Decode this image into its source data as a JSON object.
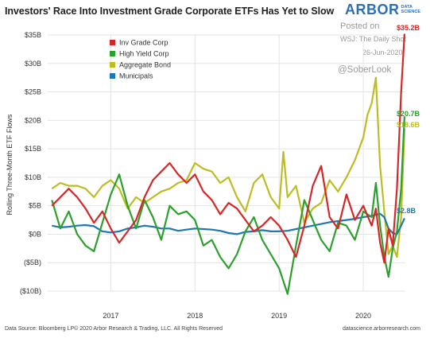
{
  "header": {
    "title": "Investors' Race Into Investment Grade Corporate ETFs Has Yet to Slow",
    "brand_name": "ARBOR",
    "brand_sub_1": "DATA",
    "brand_sub_2": "SCIENCE"
  },
  "watermark": {
    "posted_on": "Posted on",
    "source": "WSJ: The Daily Shot",
    "date": "26-Jun-2020",
    "handle": "@SoberLook"
  },
  "footer": {
    "source": "Data Source: Bloomberg LP© 2020 Arbor Research & Trading, LLC. All Rights Reserved",
    "site": "datascience.arborresearch.com"
  },
  "chart_data": {
    "type": "line",
    "title": "Investors' Race Into Investment Grade Corporate ETFs Has Yet to Slow",
    "ylabel": "Rolling Three-Month ETF Flows",
    "xlabel": "",
    "ylim": [
      -10,
      35
    ],
    "yticks": [
      35,
      30,
      25,
      20,
      15,
      10,
      5,
      0,
      -5,
      -10
    ],
    "ytick_labels": [
      "$35B",
      "$30B",
      "$25B",
      "$20B",
      "$15B",
      "$10B",
      "$5B",
      "$0B",
      "($5B)",
      "($10B)"
    ],
    "xlim": [
      2016.25,
      2020.5
    ],
    "xticks": [
      2017,
      2018,
      2019,
      2020
    ],
    "xtick_labels": [
      "2017",
      "2018",
      "2019",
      "2020"
    ],
    "grid": true,
    "legend_position": "top-left",
    "series": [
      {
        "name": "Inv Grade Corp",
        "color": "#d62728",
        "end_label": "$35.2B",
        "x": [
          2016.3,
          2016.4,
          2016.5,
          2016.6,
          2016.7,
          2016.8,
          2016.9,
          2017.0,
          2017.1,
          2017.2,
          2017.3,
          2017.4,
          2017.5,
          2017.6,
          2017.7,
          2017.8,
          2017.9,
          2018.0,
          2018.1,
          2018.2,
          2018.3,
          2018.4,
          2018.5,
          2018.6,
          2018.7,
          2018.8,
          2018.9,
          2019.0,
          2019.1,
          2019.2,
          2019.3,
          2019.4,
          2019.5,
          2019.6,
          2019.7,
          2019.8,
          2019.9,
          2020.0,
          2020.1,
          2020.15,
          2020.2,
          2020.25,
          2020.3,
          2020.35,
          2020.4,
          2020.45,
          2020.49
        ],
        "values": [
          5.0,
          6.5,
          8.0,
          6.5,
          4.5,
          2.0,
          4.0,
          1.0,
          -1.5,
          0.5,
          2.5,
          6.5,
          9.5,
          11.0,
          12.5,
          10.5,
          9.0,
          10.5,
          7.5,
          6.0,
          3.5,
          5.5,
          4.5,
          2.5,
          0.5,
          1.5,
          3.0,
          1.5,
          -1.0,
          -4.0,
          1.5,
          8.5,
          12.0,
          3.0,
          1.0,
          7.0,
          2.5,
          5.0,
          1.5,
          4.5,
          -1.5,
          -5.0,
          1.0,
          -2.0,
          8.0,
          25.0,
          35.2
        ]
      },
      {
        "name": "High Yield Corp",
        "color": "#2ca02c",
        "end_label": "$20.7B",
        "x": [
          2016.3,
          2016.4,
          2016.5,
          2016.6,
          2016.7,
          2016.8,
          2016.9,
          2017.0,
          2017.1,
          2017.2,
          2017.3,
          2017.4,
          2017.5,
          2017.6,
          2017.7,
          2017.8,
          2017.9,
          2018.0,
          2018.1,
          2018.2,
          2018.3,
          2018.4,
          2018.5,
          2018.6,
          2018.7,
          2018.8,
          2018.9,
          2019.0,
          2019.1,
          2019.2,
          2019.3,
          2019.4,
          2019.5,
          2019.6,
          2019.7,
          2019.8,
          2019.9,
          2020.0,
          2020.1,
          2020.15,
          2020.2,
          2020.25,
          2020.3,
          2020.35,
          2020.4,
          2020.45,
          2020.49
        ],
        "values": [
          6.0,
          1.0,
          4.0,
          0.0,
          -2.0,
          -3.0,
          2.0,
          7.0,
          10.5,
          5.0,
          1.0,
          6.0,
          3.0,
          -1.0,
          5.0,
          3.5,
          4.0,
          2.5,
          -2.0,
          -1.0,
          -4.0,
          -6.0,
          -3.5,
          0.5,
          3.0,
          -1.0,
          -3.5,
          -6.0,
          -10.5,
          -2.0,
          6.0,
          2.5,
          -1.0,
          -3.0,
          2.0,
          1.5,
          -1.0,
          4.0,
          3.0,
          9.0,
          1.5,
          -4.0,
          -7.5,
          -2.5,
          0.5,
          8.0,
          20.7
        ]
      },
      {
        "name": "Aggregate Bond",
        "color": "#bcbd22",
        "end_label": "$18.6B",
        "x": [
          2016.3,
          2016.4,
          2016.5,
          2016.6,
          2016.7,
          2016.8,
          2016.9,
          2017.0,
          2017.1,
          2017.2,
          2017.3,
          2017.4,
          2017.5,
          2017.6,
          2017.7,
          2017.8,
          2017.9,
          2018.0,
          2018.1,
          2018.2,
          2018.3,
          2018.4,
          2018.5,
          2018.6,
          2018.7,
          2018.8,
          2018.9,
          2019.0,
          2019.05,
          2019.1,
          2019.2,
          2019.3,
          2019.4,
          2019.5,
          2019.6,
          2019.7,
          2019.8,
          2019.9,
          2020.0,
          2020.05,
          2020.1,
          2020.15,
          2020.2,
          2020.25,
          2020.3,
          2020.35,
          2020.4,
          2020.45,
          2020.49
        ],
        "values": [
          8.0,
          9.0,
          8.5,
          8.5,
          8.0,
          6.5,
          8.5,
          9.5,
          8.0,
          4.5,
          6.5,
          5.5,
          6.5,
          7.5,
          8.0,
          9.0,
          9.5,
          12.5,
          11.5,
          11.0,
          9.0,
          10.0,
          6.5,
          4.0,
          9.0,
          10.5,
          6.5,
          4.5,
          14.5,
          6.5,
          8.5,
          2.0,
          4.5,
          5.5,
          9.5,
          7.5,
          10.0,
          13.0,
          17.0,
          21.0,
          23.0,
          27.5,
          12.0,
          4.0,
          -3.5,
          -2.0,
          -4.0,
          3.0,
          18.6
        ]
      },
      {
        "name": "Municipals",
        "color": "#1f77b4",
        "end_label": "$2.8B",
        "x": [
          2016.3,
          2016.4,
          2016.5,
          2016.6,
          2016.7,
          2016.8,
          2016.9,
          2017.0,
          2017.1,
          2017.2,
          2017.3,
          2017.4,
          2017.5,
          2017.6,
          2017.7,
          2017.8,
          2017.9,
          2018.0,
          2018.1,
          2018.2,
          2018.3,
          2018.4,
          2018.5,
          2018.6,
          2018.7,
          2018.8,
          2018.9,
          2019.0,
          2019.1,
          2019.2,
          2019.3,
          2019.4,
          2019.5,
          2019.6,
          2019.7,
          2019.8,
          2019.9,
          2020.0,
          2020.1,
          2020.15,
          2020.2,
          2020.25,
          2020.3,
          2020.35,
          2020.4,
          2020.45,
          2020.49
        ],
        "values": [
          1.5,
          1.2,
          1.3,
          1.5,
          1.6,
          1.4,
          0.5,
          0.3,
          0.5,
          1.0,
          1.2,
          1.5,
          1.3,
          1.0,
          1.0,
          0.6,
          0.8,
          1.0,
          0.9,
          0.8,
          0.6,
          0.2,
          0.0,
          0.4,
          0.5,
          0.7,
          0.5,
          0.5,
          0.6,
          0.9,
          1.2,
          1.5,
          1.8,
          2.1,
          2.3,
          2.5,
          2.7,
          3.0,
          3.2,
          3.4,
          3.6,
          3.0,
          1.0,
          0.2,
          0.0,
          1.5,
          2.8
        ]
      }
    ]
  }
}
